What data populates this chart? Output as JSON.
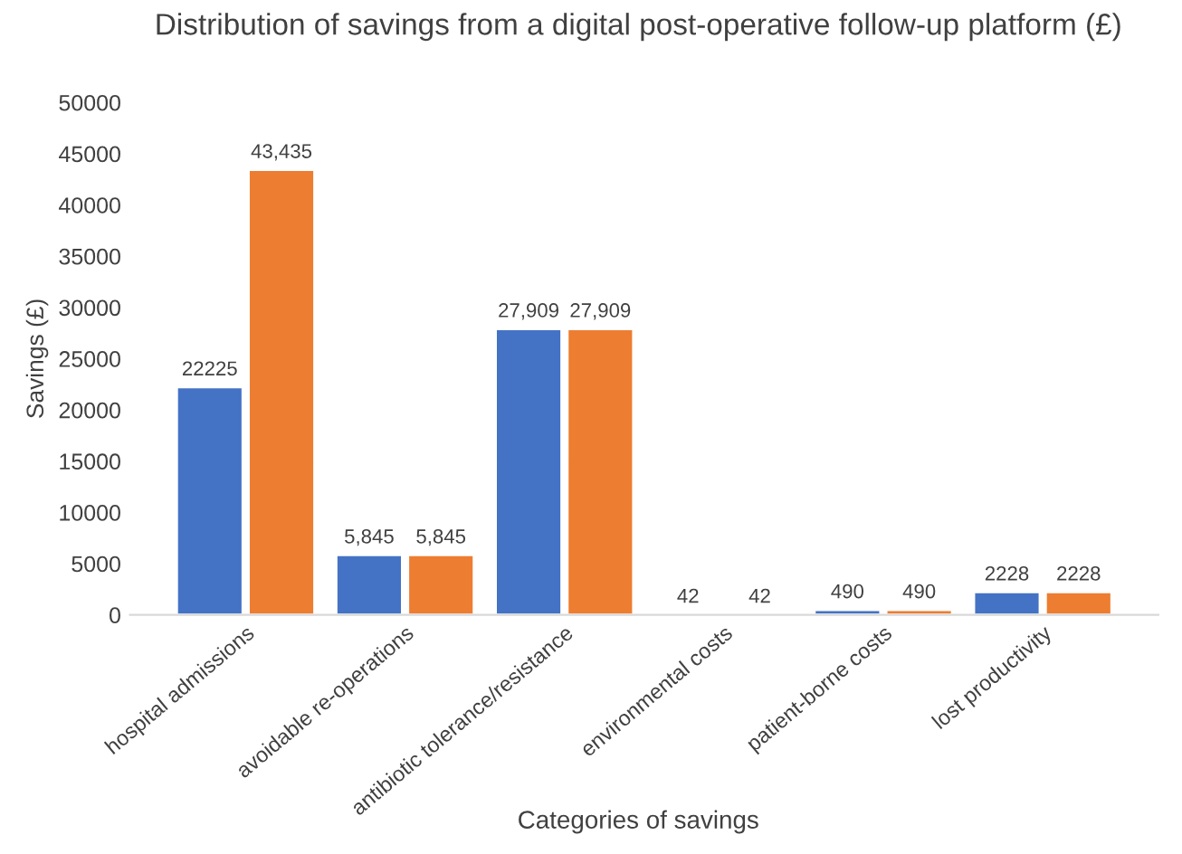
{
  "chart_data": {
    "type": "bar",
    "title": "Distribution of savings from a digital post-operative follow-up platform (£)",
    "xlabel": "Categories of savings",
    "ylabel": "Savings (£)",
    "categories": [
      "hospital admissions",
      "avoidable re-operations",
      "antibiotic tolerance/resistance",
      "environmental costs",
      "patient-borne costs",
      "lost productivity"
    ],
    "series": [
      {
        "color": "#4472c4",
        "values": [
          22225,
          5845,
          27909,
          42,
          490,
          2228
        ],
        "value_labels": [
          "22225",
          "5,845",
          "27,909",
          "42",
          "490",
          "2228"
        ]
      },
      {
        "color": "#ed7d31",
        "values": [
          43435,
          5845,
          27909,
          42,
          490,
          2228
        ],
        "value_labels": [
          "43,435",
          "5,845",
          "27,909",
          "42",
          "490",
          "2228"
        ]
      }
    ],
    "ylim": [
      0,
      50000
    ],
    "yticks": [
      0,
      5000,
      10000,
      15000,
      20000,
      25000,
      30000,
      35000,
      40000,
      45000,
      50000
    ],
    "grid": false,
    "legend": false
  }
}
